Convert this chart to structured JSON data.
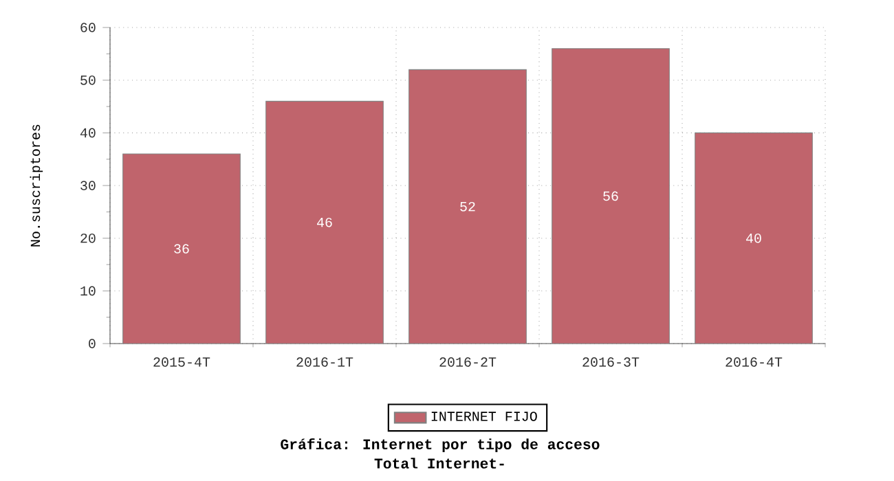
{
  "chart_data": {
    "type": "bar",
    "title": "Gráfica: Internet por tipo de acceso",
    "subtitle": "Total Internet-",
    "ylabel": "No.suscriptores",
    "categories": [
      "2015-4T",
      "2016-1T",
      "2016-2T",
      "2016-3T",
      "2016-4T"
    ],
    "series": [
      {
        "name": "INTERNET FIJO",
        "color": "#c0646c",
        "values": [
          36,
          46,
          52,
          56,
          40
        ]
      }
    ],
    "ylim": [
      0,
      60
    ],
    "yticks": [
      0,
      10,
      20,
      30,
      40,
      50,
      60
    ],
    "grid": true,
    "legend": "bottom",
    "data_labels": true
  }
}
